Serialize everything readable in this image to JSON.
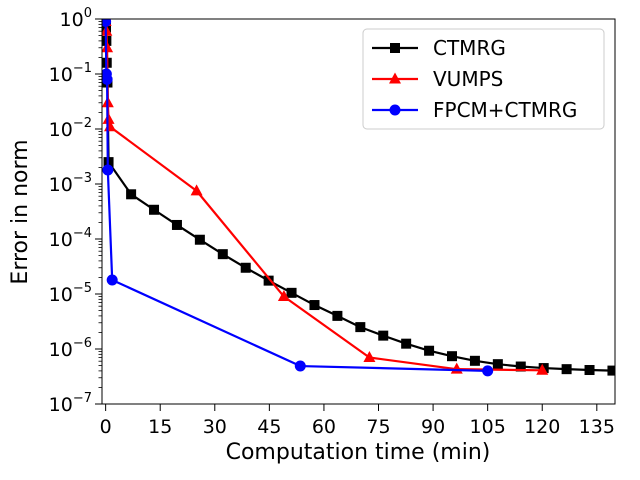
{
  "chart_data": {
    "type": "line",
    "title": "",
    "xlabel": "Computation time (min)",
    "ylabel": "Error in norm",
    "xscale": "linear",
    "yscale": "log",
    "xlim": [
      -1,
      140
    ],
    "ylim": [
      1e-07,
      1
    ],
    "xticks": [
      0,
      15,
      30,
      45,
      60,
      75,
      90,
      105,
      120,
      135
    ],
    "xtick_labels": [
      "0",
      "15",
      "30",
      "45",
      "60",
      "75",
      "90",
      "105",
      "120",
      "135"
    ],
    "ytick_exponents": [
      0,
      -1,
      -2,
      -3,
      -4,
      -5,
      -6,
      -7
    ],
    "ytick_labels": [
      {
        "base": "10",
        "exp": "0"
      },
      {
        "base": "10",
        "exp": "−1"
      },
      {
        "base": "10",
        "exp": "−2"
      },
      {
        "base": "10",
        "exp": "−3"
      },
      {
        "base": "10",
        "exp": "−4"
      },
      {
        "base": "10",
        "exp": "−5"
      },
      {
        "base": "10",
        "exp": "−6"
      },
      {
        "base": "10",
        "exp": "−7"
      }
    ],
    "legend_position": "top-right",
    "series": [
      {
        "name": "CTMRG",
        "color": "#000000",
        "marker": "square",
        "x": [
          0.0,
          0.1,
          0.2,
          0.3,
          0.5,
          0.8,
          7.0,
          13.3,
          19.6,
          25.9,
          32.2,
          38.5,
          44.8,
          51.1,
          57.4,
          63.7,
          70.0,
          76.3,
          82.6,
          88.9,
          95.2,
          101.5,
          107.8,
          114.1,
          120.4,
          126.7,
          133.0,
          139.3
        ],
        "y": [
          0.95,
          0.7,
          0.4,
          0.16,
          0.07,
          0.0025,
          0.00065,
          0.00034,
          0.00018,
          9.7e-05,
          5.3e-05,
          3e-05,
          1.75e-05,
          1.05e-05,
          6.3e-06,
          4e-06,
          2.5e-06,
          1.75e-06,
          1.25e-06,
          9.3e-07,
          7.4e-07,
          6.1e-07,
          5.3e-07,
          4.8e-07,
          4.5e-07,
          4.3e-07,
          4.15e-07,
          4.05e-07
        ]
      },
      {
        "name": "VUMPS",
        "color": "#ff0000",
        "marker": "triangle",
        "x": [
          0.0,
          0.2,
          0.4,
          0.6,
          0.8,
          1.2,
          25.0,
          49.0,
          72.5,
          96.5,
          120.0
        ],
        "y": [
          0.9,
          0.6,
          0.3,
          0.03,
          0.015,
          0.011,
          0.00075,
          9e-06,
          7e-07,
          4.3e-07,
          4.1e-07
        ]
      },
      {
        "name": "FPCM+CTMRG",
        "color": "#0000ff",
        "marker": "circle",
        "x": [
          0.0,
          0.2,
          0.4,
          0.6,
          1.8,
          53.5,
          105.0
        ],
        "y": [
          0.9,
          0.1,
          0.08,
          0.0018,
          1.8e-05,
          4.9e-07,
          4e-07
        ]
      }
    ]
  }
}
